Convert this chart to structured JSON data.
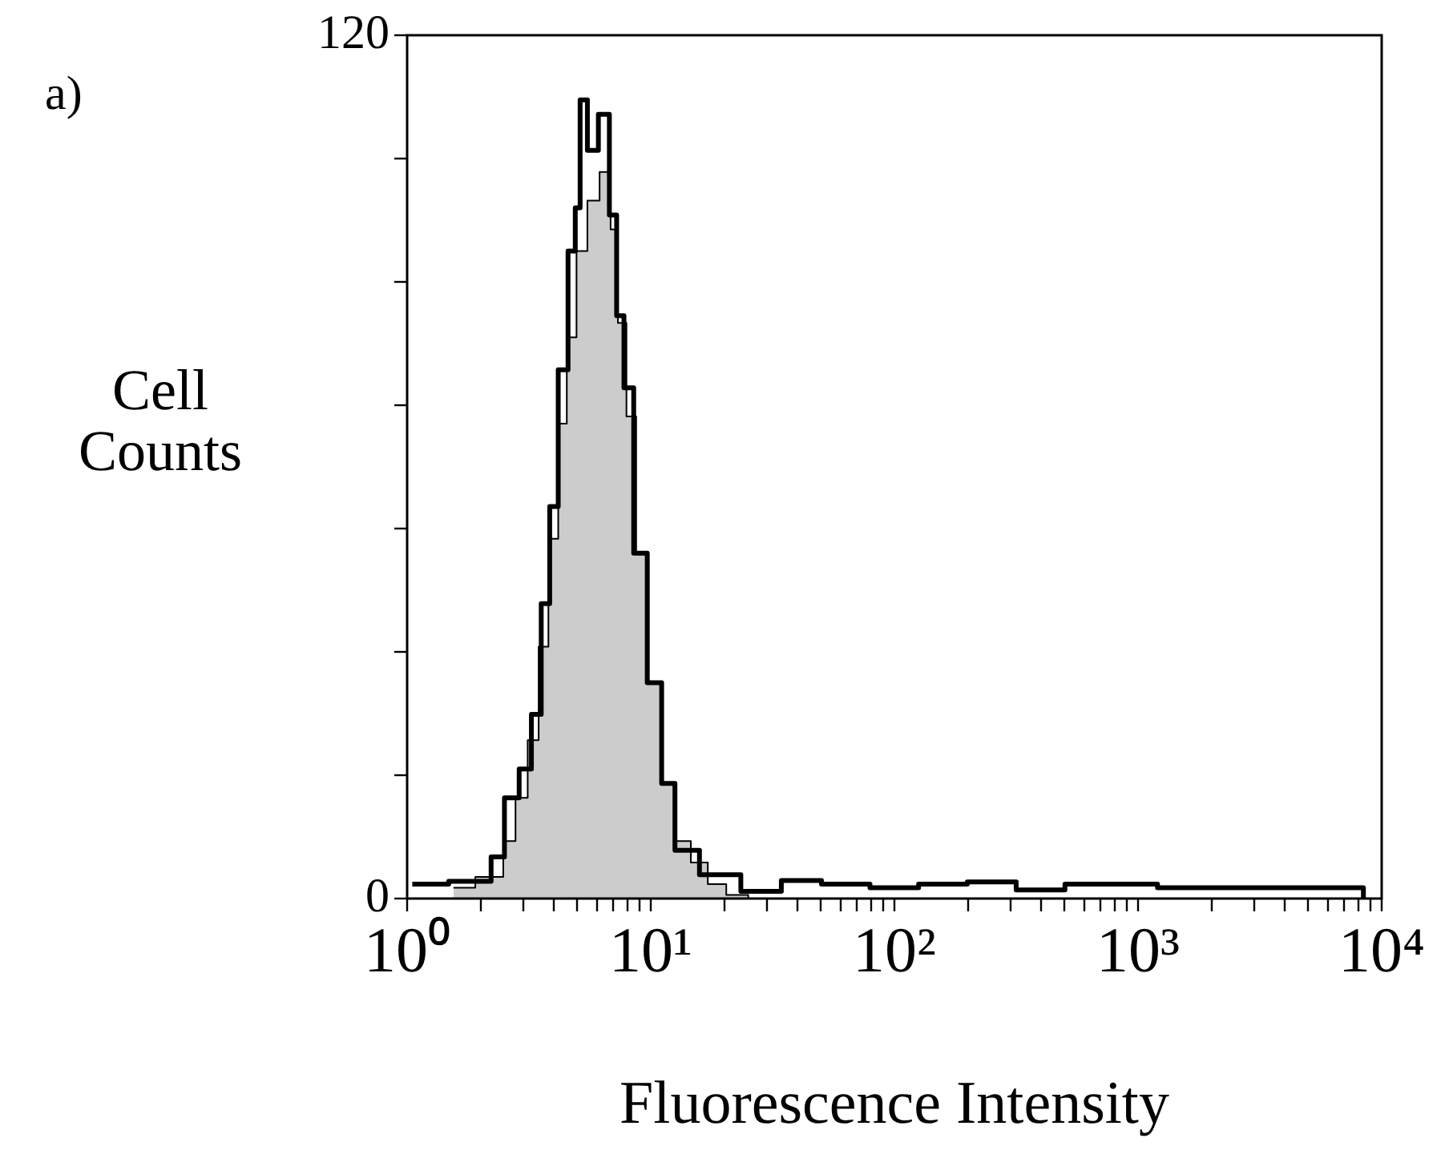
{
  "chart_data": {
    "type": "step",
    "xlabel": "Fluorescence Intensity",
    "ylabel": "Cell Counts",
    "annotations": [
      "a)"
    ],
    "log": "x",
    "xlim": [
      1,
      10000
    ],
    "xticks": [
      {
        "value": 1,
        "label": "10⁰"
      },
      {
        "value": 2,
        "label": null
      },
      {
        "value": 3,
        "label": null
      },
      {
        "value": 4,
        "label": null
      },
      {
        "value": 5,
        "label": null
      },
      {
        "value": 6,
        "label": null
      },
      {
        "value": 7,
        "label": null
      },
      {
        "value": 8,
        "label": null
      },
      {
        "value": 9,
        "label": null
      },
      {
        "value": 10,
        "label": "10¹"
      },
      {
        "value": 20,
        "label": null
      },
      {
        "value": 30,
        "label": null
      },
      {
        "value": 40,
        "label": null
      },
      {
        "value": 50,
        "label": null
      },
      {
        "value": 60,
        "label": null
      },
      {
        "value": 70,
        "label": null
      },
      {
        "value": 80,
        "label": null
      },
      {
        "value": 90,
        "label": null
      },
      {
        "value": 100,
        "label": "10²"
      },
      {
        "value": 200,
        "label": null
      },
      {
        "value": 300,
        "label": null
      },
      {
        "value": 400,
        "label": null
      },
      {
        "value": 500,
        "label": null
      },
      {
        "value": 600,
        "label": null
      },
      {
        "value": 700,
        "label": null
      },
      {
        "value": 800,
        "label": null
      },
      {
        "value": 900,
        "label": null
      },
      {
        "value": 1000,
        "label": "10³"
      },
      {
        "value": 2000,
        "label": null
      },
      {
        "value": 3000,
        "label": null
      },
      {
        "value": 4000,
        "label": null
      },
      {
        "value": 5000,
        "label": null
      },
      {
        "value": 6000,
        "label": null
      },
      {
        "value": 7000,
        "label": null
      },
      {
        "value": 8000,
        "label": null
      },
      {
        "value": 9000,
        "label": null
      },
      {
        "value": 10000,
        "label": "10⁴"
      }
    ],
    "ylim": [
      0,
      120
    ],
    "yticks": [
      0,
      {
        "value": 17.1,
        "label": null
      },
      {
        "value": 34.3,
        "label": null
      },
      {
        "value": 51.4,
        "label": null
      },
      {
        "value": 68.6,
        "label": null
      },
      {
        "value": 85.7,
        "label": null
      },
      {
        "value": 102.9,
        "label": null
      },
      120
    ],
    "series": [
      {
        "type": "step",
        "color": "#000000",
        "x": [
          1.05,
          2.09,
          2.34,
          2.69,
          3.09,
          3.39,
          3.72,
          3.98,
          4.37,
          4.79,
          5.01,
          5.25,
          5.75,
          6.46,
          7.08,
          7.41,
          8.13,
          8.91,
          10.5,
          11.7,
          13.5,
          18.6,
          29.5,
          40,
          63,
          100,
          158,
          251,
          398,
          631,
          1000,
          1445,
          3162,
          8318,
          8511
        ],
        "values": [
          2,
          2.4,
          5.8,
          14,
          18,
          25.6,
          41,
          54.5,
          73.5,
          90,
          96,
          111,
          104,
          109,
          95,
          81,
          71,
          48,
          30,
          16,
          6.7,
          3.3,
          1,
          2.5,
          2,
          1.5,
          2,
          2.3,
          1.2,
          2,
          2,
          1.5,
          1.5,
          1.5,
          0
        ]
      },
      {
        "type": "area",
        "color": "#000000",
        "x": [
          1.55,
          2.34,
          2.63,
          2.95,
          3.31,
          3.63,
          3.98,
          4.37,
          4.68,
          5.25,
          5.75,
          6.61,
          7.08,
          7.59,
          8.32,
          9.12,
          10.5,
          11.7,
          13.5,
          15.8,
          18.6,
          22.4,
          28.2
        ],
        "values": [
          1.5,
          3,
          8,
          14,
          22,
          35,
          50,
          66,
          78,
          90,
          97,
          101,
          93,
          80,
          67,
          48,
          30,
          16,
          8,
          5,
          2,
          0.5,
          0
        ]
      }
    ]
  }
}
